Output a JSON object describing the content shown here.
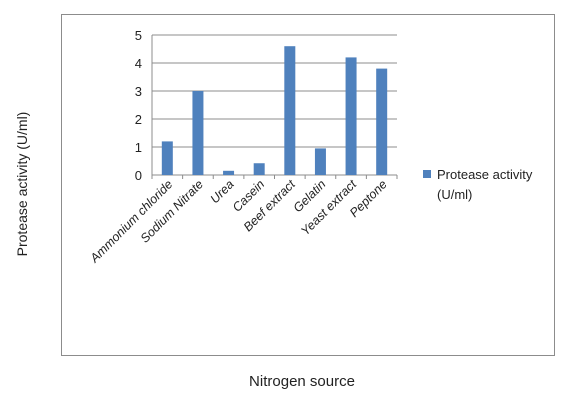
{
  "chart_data": {
    "type": "bar",
    "categories": [
      "Ammonium chloride",
      "Sodium Nitrate",
      "Urea",
      "Casein",
      "Beef extract",
      "Gelatin",
      "Yeast extract",
      "Peptone"
    ],
    "series": [
      {
        "name": "Protease activity (U/ml)",
        "values": [
          1.2,
          3.0,
          0.15,
          0.42,
          4.6,
          0.95,
          4.2,
          3.8
        ],
        "color": "#4f81bd"
      }
    ],
    "xlabel": "Nitrogen source",
    "ylabel": "Protease activity (U/ml)",
    "ylim": [
      0,
      5
    ],
    "yticks": [
      0,
      1,
      2,
      3,
      4,
      5
    ],
    "grid": true,
    "legend": "right"
  }
}
